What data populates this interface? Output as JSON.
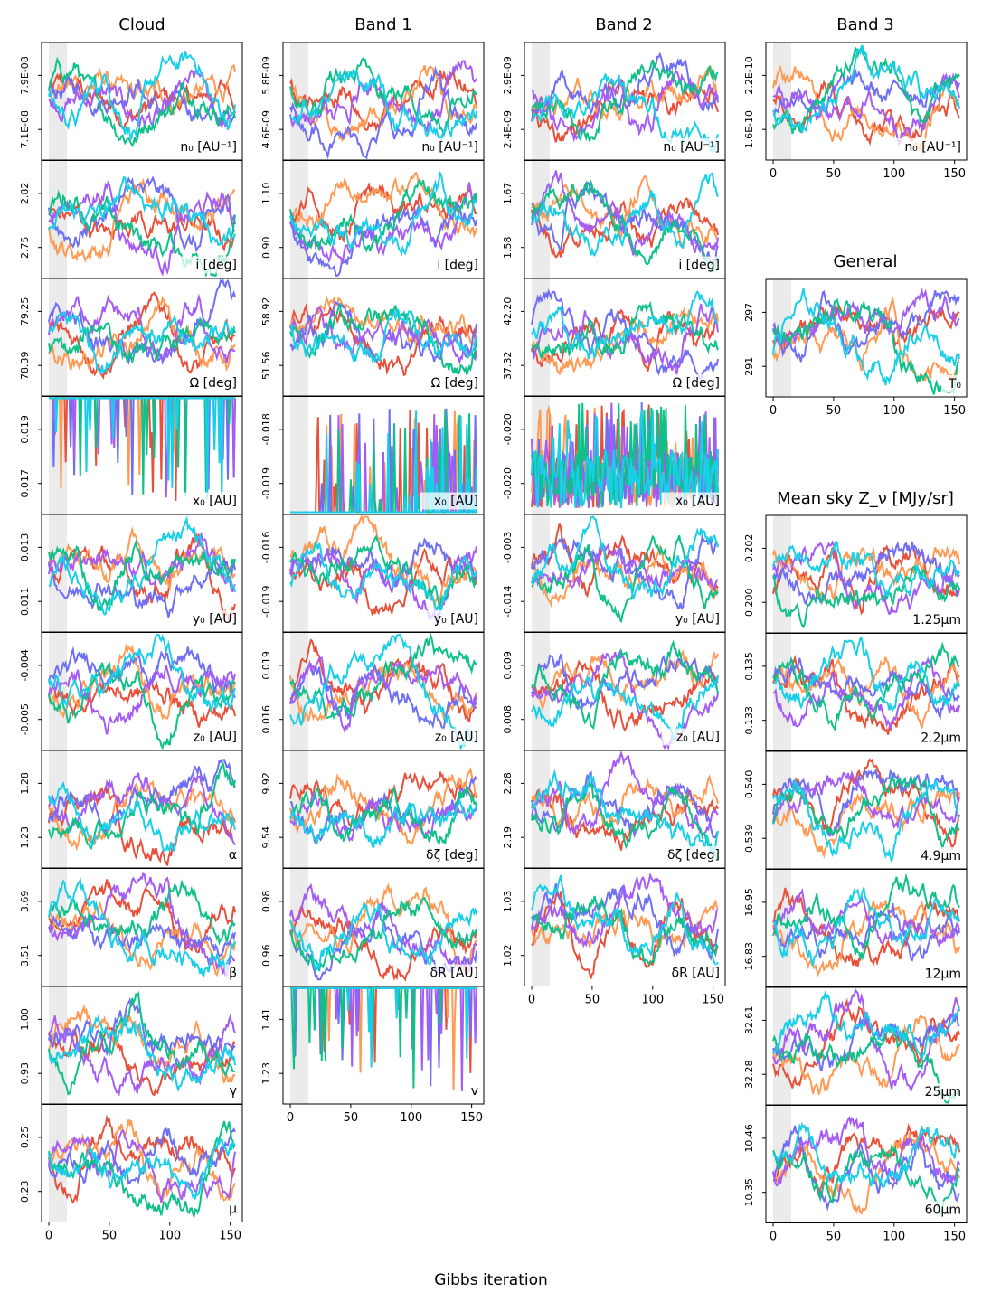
{
  "figure": {
    "xlabel": "Gibbs iteration",
    "column_titles": [
      "Cloud",
      "Band 1",
      "Band 2",
      "Band 3"
    ],
    "side_titles": [
      "General",
      "Mean sky Z_ν [MJy/sr]"
    ]
  },
  "chart_data": {
    "type": "line",
    "n_iterations": 155,
    "burn_in_shaded_range": [
      0,
      15
    ],
    "xlim": [
      -6,
      160
    ],
    "xticks": [
      0,
      50,
      100,
      150
    ],
    "n_chains": 6,
    "series_colors": [
      "#e8503a",
      "#ff9a55",
      "#6f6ff5",
      "#a55cf5",
      "#0fc189",
      "#19cfe8"
    ],
    "panels": [
      {
        "id": "cloud-n0",
        "group": "Cloud",
        "label": "n₀ [AU⁻¹]",
        "yticks": [
          "7.9E-08",
          "7.1E-08"
        ],
        "kind": "trace"
      },
      {
        "id": "cloud-i",
        "group": "Cloud",
        "label": "i [deg]",
        "yticks": [
          "2.82",
          "2.75"
        ],
        "kind": "trace"
      },
      {
        "id": "cloud-omega",
        "group": "Cloud",
        "label": "Ω [deg]",
        "yticks": [
          "79.25",
          "78.39"
        ],
        "kind": "trace"
      },
      {
        "id": "cloud-x0",
        "group": "Cloud",
        "label": "x₀ [AU]",
        "yticks": [
          "0.019",
          "0.017"
        ],
        "kind": "stuck-top"
      },
      {
        "id": "cloud-y0",
        "group": "Cloud",
        "label": "y₀ [AU]",
        "yticks": [
          "0.013",
          "0.011"
        ],
        "kind": "trace"
      },
      {
        "id": "cloud-z0",
        "group": "Cloud",
        "label": "z₀ [AU]",
        "yticks": [
          "-0.004",
          "-0.005"
        ],
        "kind": "trace"
      },
      {
        "id": "cloud-alpha",
        "group": "Cloud",
        "label": "α",
        "yticks": [
          "1.28",
          "1.23"
        ],
        "kind": "trace"
      },
      {
        "id": "cloud-beta",
        "group": "Cloud",
        "label": "β",
        "yticks": [
          "3.69",
          "3.51"
        ],
        "kind": "trace"
      },
      {
        "id": "cloud-gamma",
        "group": "Cloud",
        "label": "γ",
        "yticks": [
          "1.00",
          "0.93"
        ],
        "kind": "trace"
      },
      {
        "id": "cloud-mu",
        "group": "Cloud",
        "label": "μ",
        "yticks": [
          "0.25",
          "0.23"
        ],
        "kind": "trace"
      },
      {
        "id": "band1-n0",
        "group": "Band 1",
        "label": "n₀ [AU⁻¹]",
        "yticks": [
          "5.8E-09",
          "4.6E-09"
        ],
        "kind": "trace"
      },
      {
        "id": "band1-i",
        "group": "Band 1",
        "label": "i [deg]",
        "yticks": [
          "1.10",
          "0.90"
        ],
        "kind": "trace"
      },
      {
        "id": "band1-omega",
        "group": "Band 1",
        "label": "Ω [deg]",
        "yticks": [
          "58.92",
          "51.56"
        ],
        "kind": "trace"
      },
      {
        "id": "band1-x0",
        "group": "Band 1",
        "label": "x₀ [AU]",
        "yticks": [
          "-0.018",
          "-0.019"
        ],
        "kind": "stuck-bottom"
      },
      {
        "id": "band1-y0",
        "group": "Band 1",
        "label": "y₀ [AU]",
        "yticks": [
          "-0.016",
          "-0.019"
        ],
        "kind": "trace"
      },
      {
        "id": "band1-z0",
        "group": "Band 1",
        "label": "z₀ [AU]",
        "yticks": [
          "0.019",
          "0.016"
        ],
        "kind": "trace"
      },
      {
        "id": "band1-dzeta",
        "group": "Band 1",
        "label": "δζ [deg]",
        "yticks": [
          "9.92",
          "9.54"
        ],
        "kind": "trace"
      },
      {
        "id": "band1-dR",
        "group": "Band 1",
        "label": "δR [AU]",
        "yticks": [
          "0.98",
          "0.96"
        ],
        "kind": "trace"
      },
      {
        "id": "band1-v",
        "group": "Band 1",
        "label": "v",
        "yticks": [
          "1.41",
          "1.23"
        ],
        "kind": "stuck-top"
      },
      {
        "id": "band2-n0",
        "group": "Band 2",
        "label": "n₀ [AU⁻¹]",
        "yticks": [
          "2.9E-09",
          "2.4E-09"
        ],
        "kind": "trace"
      },
      {
        "id": "band2-i",
        "group": "Band 2",
        "label": "i [deg]",
        "yticks": [
          "1.67",
          "1.58"
        ],
        "kind": "trace"
      },
      {
        "id": "band2-omega",
        "group": "Band 2",
        "label": "Ω [deg]",
        "yticks": [
          "42.20",
          "37.32"
        ],
        "kind": "trace"
      },
      {
        "id": "band2-x0",
        "group": "Band 2",
        "label": "x₀ [AU]",
        "yticks": [
          "-0.020",
          "-0.020"
        ],
        "kind": "spiky"
      },
      {
        "id": "band2-y0",
        "group": "Band 2",
        "label": "y₀ [AU]",
        "yticks": [
          "-0.003",
          "-0.014"
        ],
        "kind": "trace"
      },
      {
        "id": "band2-z0",
        "group": "Band 2",
        "label": "z₀ [AU]",
        "yticks": [
          "0.009",
          "0.008"
        ],
        "kind": "trace"
      },
      {
        "id": "band2-dzeta",
        "group": "Band 2",
        "label": "δζ [deg]",
        "yticks": [
          "2.28",
          "2.19"
        ],
        "kind": "trace"
      },
      {
        "id": "band2-dR",
        "group": "Band 2",
        "label": "δR [AU]",
        "yticks": [
          "1.03",
          "1.02"
        ],
        "kind": "trace"
      },
      {
        "id": "band3-n0",
        "group": "Band 3",
        "label": "n₀ [AU⁻¹]",
        "yticks": [
          "2.2E-10",
          "1.6E-10"
        ],
        "kind": "trace"
      },
      {
        "id": "general-T0",
        "group": "General",
        "label": "T₀",
        "yticks": [
          "297",
          "291"
        ],
        "kind": "trace"
      },
      {
        "id": "sky-1.25",
        "group": "Mean sky",
        "label": "1.25μm",
        "yticks": [
          "0.202",
          "0.200"
        ],
        "kind": "trace"
      },
      {
        "id": "sky-2.2",
        "group": "Mean sky",
        "label": "2.2μm",
        "yticks": [
          "0.135",
          "0.133"
        ],
        "kind": "trace"
      },
      {
        "id": "sky-4.9",
        "group": "Mean sky",
        "label": "4.9μm",
        "yticks": [
          "0.540",
          "0.539"
        ],
        "kind": "trace"
      },
      {
        "id": "sky-12",
        "group": "Mean sky",
        "label": "12μm",
        "yticks": [
          "16.95",
          "16.83"
        ],
        "kind": "trace"
      },
      {
        "id": "sky-25",
        "group": "Mean sky",
        "label": "25μm",
        "yticks": [
          "32.61",
          "32.28"
        ],
        "kind": "trace"
      },
      {
        "id": "sky-60",
        "group": "Mean sky",
        "label": "60μm",
        "yticks": [
          "10.46",
          "10.35"
        ],
        "kind": "trace"
      }
    ]
  }
}
